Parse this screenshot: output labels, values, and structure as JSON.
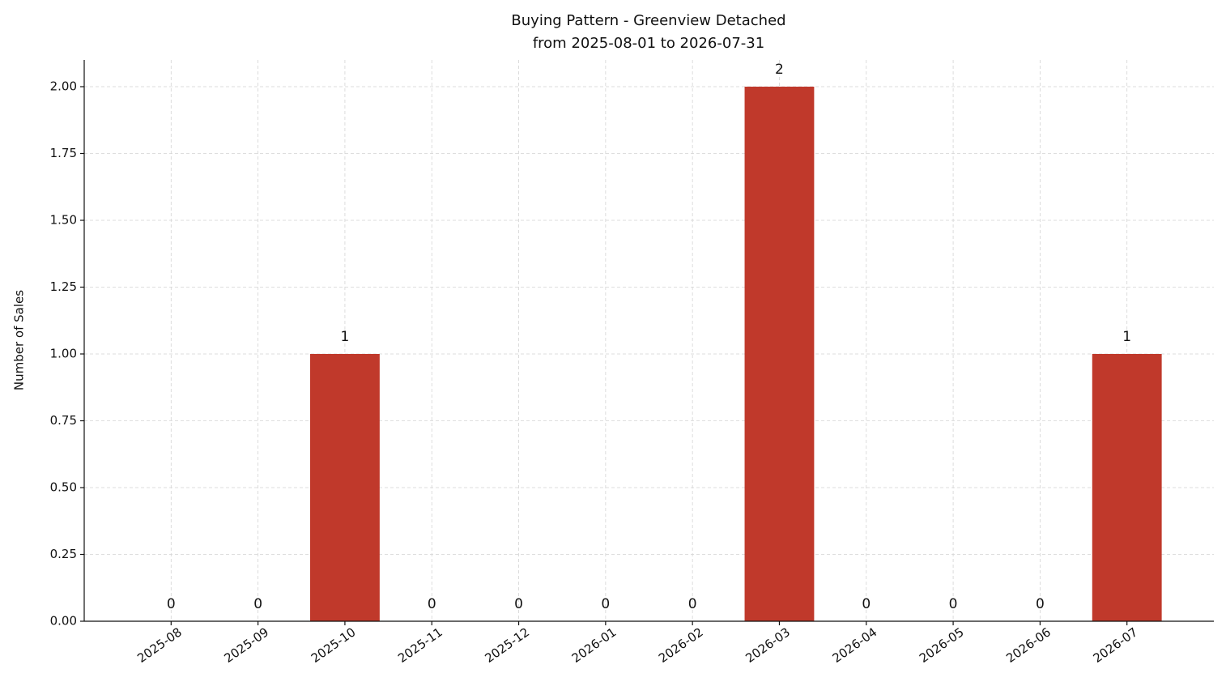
{
  "chart_data": {
    "type": "bar",
    "title": "Buying Pattern - Greenview Detached",
    "subtitle": "from 2025-08-01 to 2026-07-31",
    "y_label": "Number of Sales",
    "categories": [
      "2025-08",
      "2025-09",
      "2025-10",
      "2025-11",
      "2025-12",
      "2026-01",
      "2026-02",
      "2026-03",
      "2026-04",
      "2026-05",
      "2026-06",
      "2026-07"
    ],
    "values": [
      0,
      0,
      1,
      0,
      0,
      0,
      0,
      2,
      0,
      0,
      0,
      1
    ],
    "color": "#c0392b",
    "ylim": [
      0,
      2.1
    ],
    "yticks": [
      {
        "value": 0,
        "label": "0.00"
      },
      {
        "value": 0.25,
        "label": "0.25"
      },
      {
        "value": 0.5,
        "label": "0.50"
      },
      {
        "value": 0.75,
        "label": "0.75"
      },
      {
        "value": 1,
        "label": "1.00"
      },
      {
        "value": 1.25,
        "label": "1.25"
      },
      {
        "value": 1.5,
        "label": "1.50"
      },
      {
        "value": 1.75,
        "label": "1.75"
      },
      {
        "value": 2,
        "label": "2.00"
      }
    ],
    "grid": true
  }
}
